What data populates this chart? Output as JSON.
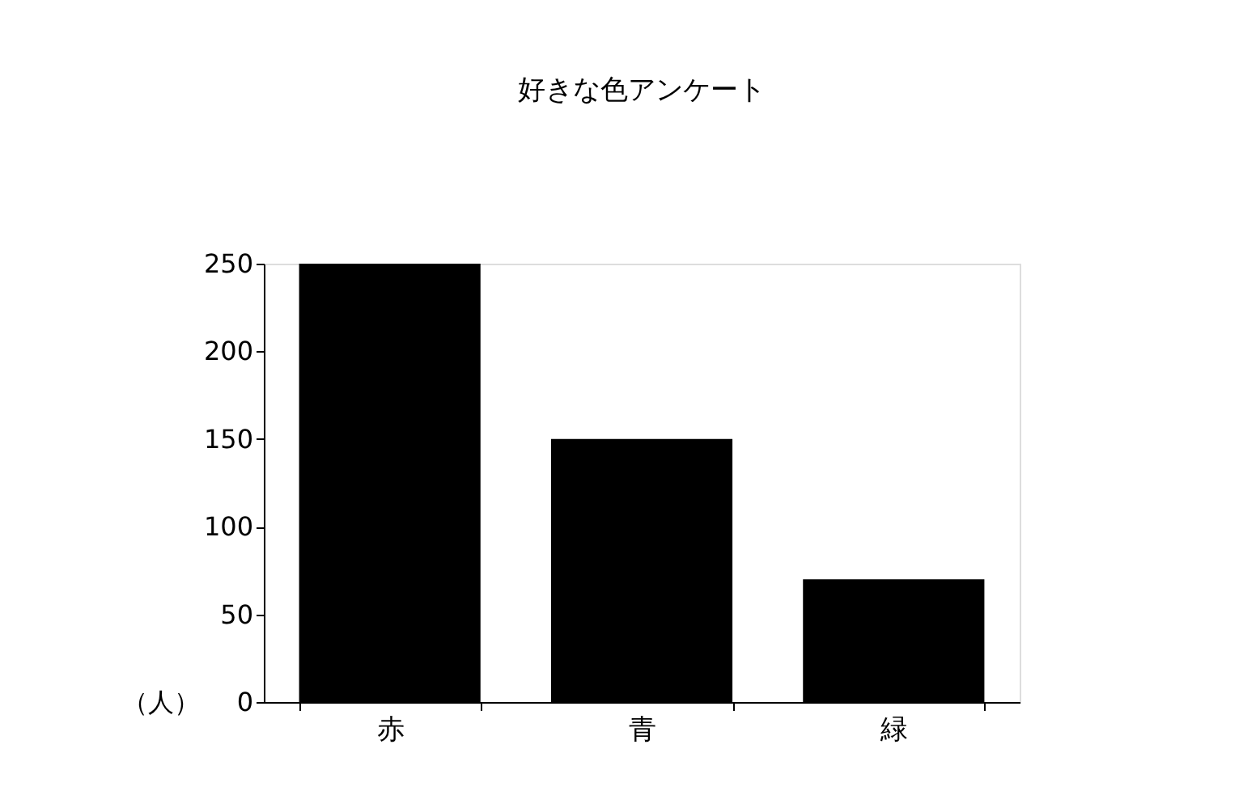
{
  "chart_data": {
    "type": "bar",
    "title": "好きな色アンケート",
    "ylabel": "（人）",
    "categories": [
      "赤",
      "青",
      "緑"
    ],
    "values": [
      250,
      150,
      70
    ],
    "color": "#000000",
    "ylim": [
      0,
      250
    ],
    "yticks": [
      0,
      50,
      100,
      150,
      200,
      250
    ]
  }
}
